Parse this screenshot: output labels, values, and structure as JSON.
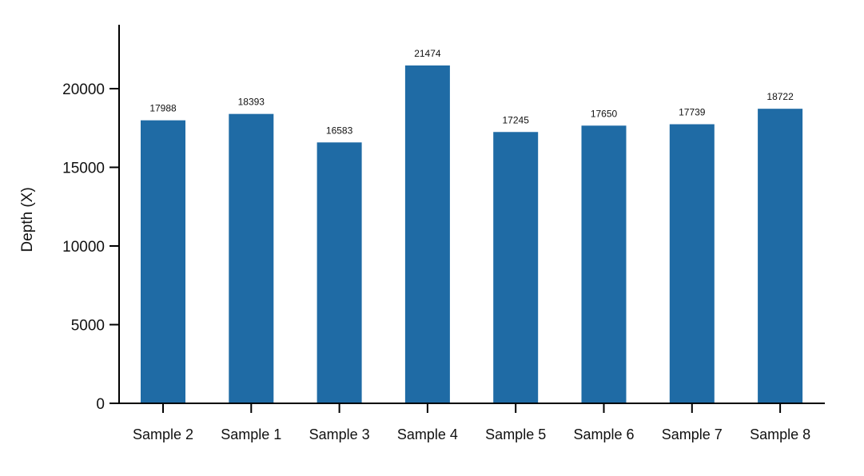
{
  "chart_data": {
    "type": "bar",
    "title": "",
    "xlabel": "",
    "ylabel": "Depth (X)",
    "categories": [
      "Sample 2",
      "Sample 1",
      "Sample 3",
      "Sample 4",
      "Sample 5",
      "Sample 6",
      "Sample 7",
      "Sample 8"
    ],
    "values": [
      17988,
      18393,
      16583,
      21474,
      17245,
      17650,
      17739,
      18722
    ],
    "data_labels": [
      "17988",
      "18393",
      "16583",
      "21474",
      "17245",
      "17650",
      "17739",
      "18722"
    ],
    "yticks": [
      0,
      5000,
      10000,
      15000,
      20000
    ],
    "ylim": [
      0,
      24000
    ],
    "grid": false,
    "legend": "none",
    "bar_color": "#1f6ba5",
    "axis_color": "#000000",
    "text_color": "#111111"
  }
}
